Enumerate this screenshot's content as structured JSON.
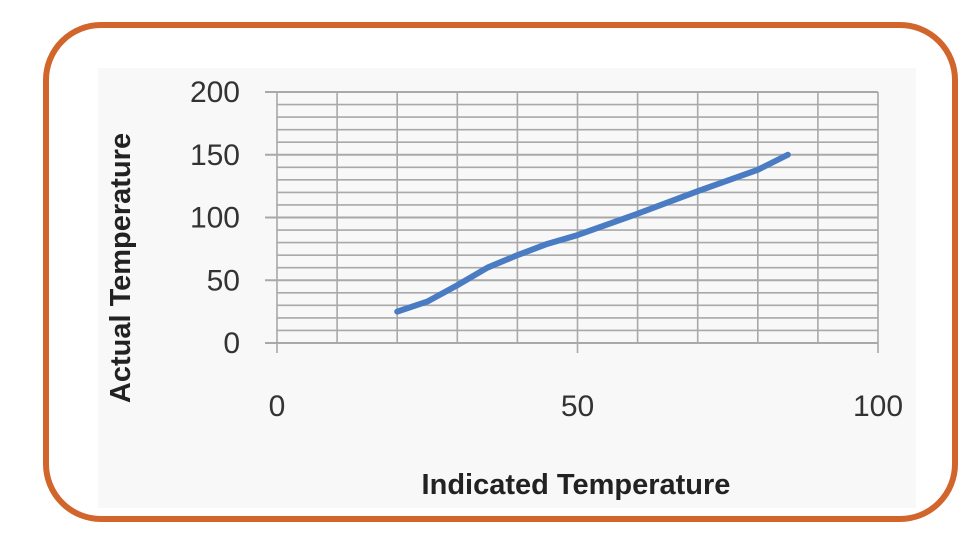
{
  "chart_data": {
    "type": "line",
    "title": "",
    "xlabel": "Indicated Temperature",
    "ylabel": "Actual Temperature",
    "xlim": [
      0,
      100
    ],
    "ylim": [
      0,
      200
    ],
    "x_ticks": [
      0,
      50,
      100
    ],
    "y_ticks": [
      0,
      50,
      100,
      150,
      200
    ],
    "x_tick_labels": [
      "0",
      "50",
      "100"
    ],
    "y_tick_labels": [
      "0",
      "50",
      "100",
      "150",
      "200"
    ],
    "grid": {
      "x_major_step": 10,
      "y_minor_step": 10,
      "y_major_step": 50
    },
    "legend": null,
    "series": [
      {
        "name": "Actual Temperature",
        "color": "#4a7cc4",
        "x": [
          20,
          25,
          30,
          35,
          40,
          45,
          50,
          60,
          70,
          80,
          85
        ],
        "y": [
          25,
          33,
          46,
          60,
          70,
          79,
          86,
          103,
          121,
          138,
          150
        ]
      }
    ]
  },
  "colors": {
    "frame_border": "#d2652c",
    "line": "#4a7cc4",
    "grid": "#a9a9a9",
    "panel_bg": "#f8f8f8"
  }
}
